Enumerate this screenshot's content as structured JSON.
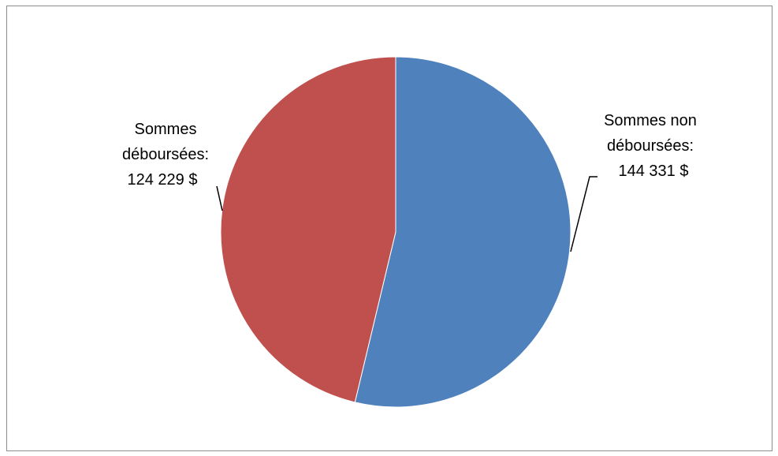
{
  "chart_data": {
    "type": "pie",
    "title": "",
    "start_angle_deg": 0,
    "direction": "clockwise",
    "slices": [
      {
        "label_lines": [
          "Sommes non",
          "déboursées:",
          "144 331  $"
        ],
        "value": 144331,
        "color": "#4F81BD"
      },
      {
        "label_lines": [
          "Sommes",
          "déboursées:",
          "124 229  $"
        ],
        "value": 124229,
        "color": "#C0504D"
      }
    ],
    "legend": "none"
  }
}
